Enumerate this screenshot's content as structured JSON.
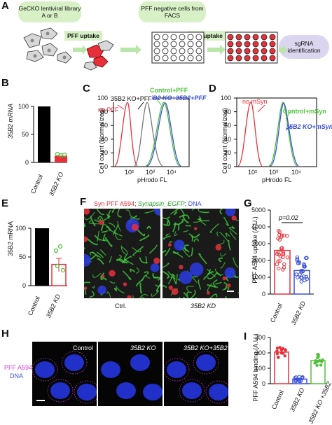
{
  "panels": {
    "A": {
      "label": "A",
      "library": "GeCKO lentiviral library A or B",
      "step1": "PFF uptake",
      "sorted": "PFF negative cells from FACS",
      "step2": "PFF uptake",
      "final": "sgRNA identification"
    },
    "B": {
      "label": "B",
      "ylabel": "35B2 mRNA",
      "categories": [
        "Control",
        "35B2 KO"
      ],
      "values": [
        100,
        12
      ],
      "yticks": [
        "0",
        "50",
        "100"
      ]
    },
    "C": {
      "label": "C",
      "ylabel": "Cell count (Normalized)",
      "xlabel": "pHrodo FL",
      "legend1": "Control+PFF",
      "legend2": "35B2 KO+35B2+PFF",
      "legend3": "35B2 KO+PFF",
      "legend4": "no PFF",
      "yticks": [
        "0",
        "20",
        "40",
        "60",
        "80",
        "100"
      ],
      "xticks": [
        "10²",
        "10³",
        "10⁴"
      ]
    },
    "D": {
      "label": "D",
      "ylabel": "Cell count (Normalized)",
      "xlabel": "pHrodo FL",
      "legend1": "Control+mSyn",
      "legend2": "35B2 KO+mSyn",
      "legend3": "no mSyn",
      "yticks": [
        "0",
        "20",
        "40",
        "60",
        "80",
        "100"
      ],
      "xticks": [
        "10²",
        "10³",
        "10⁴"
      ]
    },
    "E": {
      "label": "E",
      "ylabel": "35B2 mRNA",
      "categories": [
        "Control",
        "35B2 KD"
      ],
      "values": [
        100,
        37
      ],
      "yticks": [
        "0",
        "50",
        "100"
      ]
    },
    "F": {
      "label": "F",
      "stain1": "Syn PFF A594",
      "stain2": "Synapsin_EGFP",
      "stain3": "DNA",
      "left": "Ctrl.",
      "right": "35B2 KD"
    },
    "G": {
      "label": "G",
      "ylabel": "PFF A594 uptake (A.U.)",
      "pvalue": "p=0.02",
      "categories": [
        "Control",
        "35B2 KD"
      ],
      "values": [
        2600,
        1400
      ],
      "yticks": [
        "0",
        "1000",
        "2000",
        "3000",
        "4000",
        "5000"
      ]
    },
    "H": {
      "label": "H",
      "rowlabel1": "PFF A594",
      "rowlabel2": "DNA",
      "cols": [
        "Control",
        "35B2 KO",
        "35B2 KO+35B2"
      ]
    },
    "I": {
      "label": "I",
      "ylabel": "PFF A594 binding (A.U.)",
      "categories": [
        "Control",
        "35B2 KO",
        "35B2 KO +35B2"
      ],
      "values": [
        205,
        30,
        150
      ],
      "yticks": [
        "0",
        "100",
        "200",
        "300"
      ]
    }
  },
  "chart_data": [
    {
      "type": "bar",
      "panel": "B",
      "title": "",
      "ylabel": "35B2 mRNA",
      "categories": [
        "Control",
        "35B2 KO"
      ],
      "values": [
        100,
        12
      ],
      "ylim": [
        0,
        100
      ]
    },
    {
      "type": "bar",
      "panel": "E",
      "title": "",
      "ylabel": "35B2 mRNA",
      "categories": [
        "Control",
        "35B2 KD"
      ],
      "values": [
        100,
        37
      ],
      "ylim": [
        0,
        100
      ]
    },
    {
      "type": "bar",
      "panel": "G",
      "title": "",
      "ylabel": "PFF A594 uptake (A.U.)",
      "categories": [
        "Control",
        "35B2 KD"
      ],
      "values": [
        2600,
        1400
      ],
      "ylim": [
        0,
        5000
      ]
    },
    {
      "type": "bar",
      "panel": "I",
      "title": "",
      "ylabel": "PFF A594 binding (A.U.)",
      "categories": [
        "Control",
        "35B2 KO",
        "35B2 KO +35B2"
      ],
      "values": [
        205,
        30,
        150
      ],
      "ylim": [
        0,
        300
      ]
    }
  ],
  "colors": {
    "red": "#e8303a",
    "green": "#4fc23a",
    "blue": "#3a4fd8",
    "gray": "#777777",
    "bubble": "#d7f0c6",
    "pill": "#dcd5ef"
  }
}
